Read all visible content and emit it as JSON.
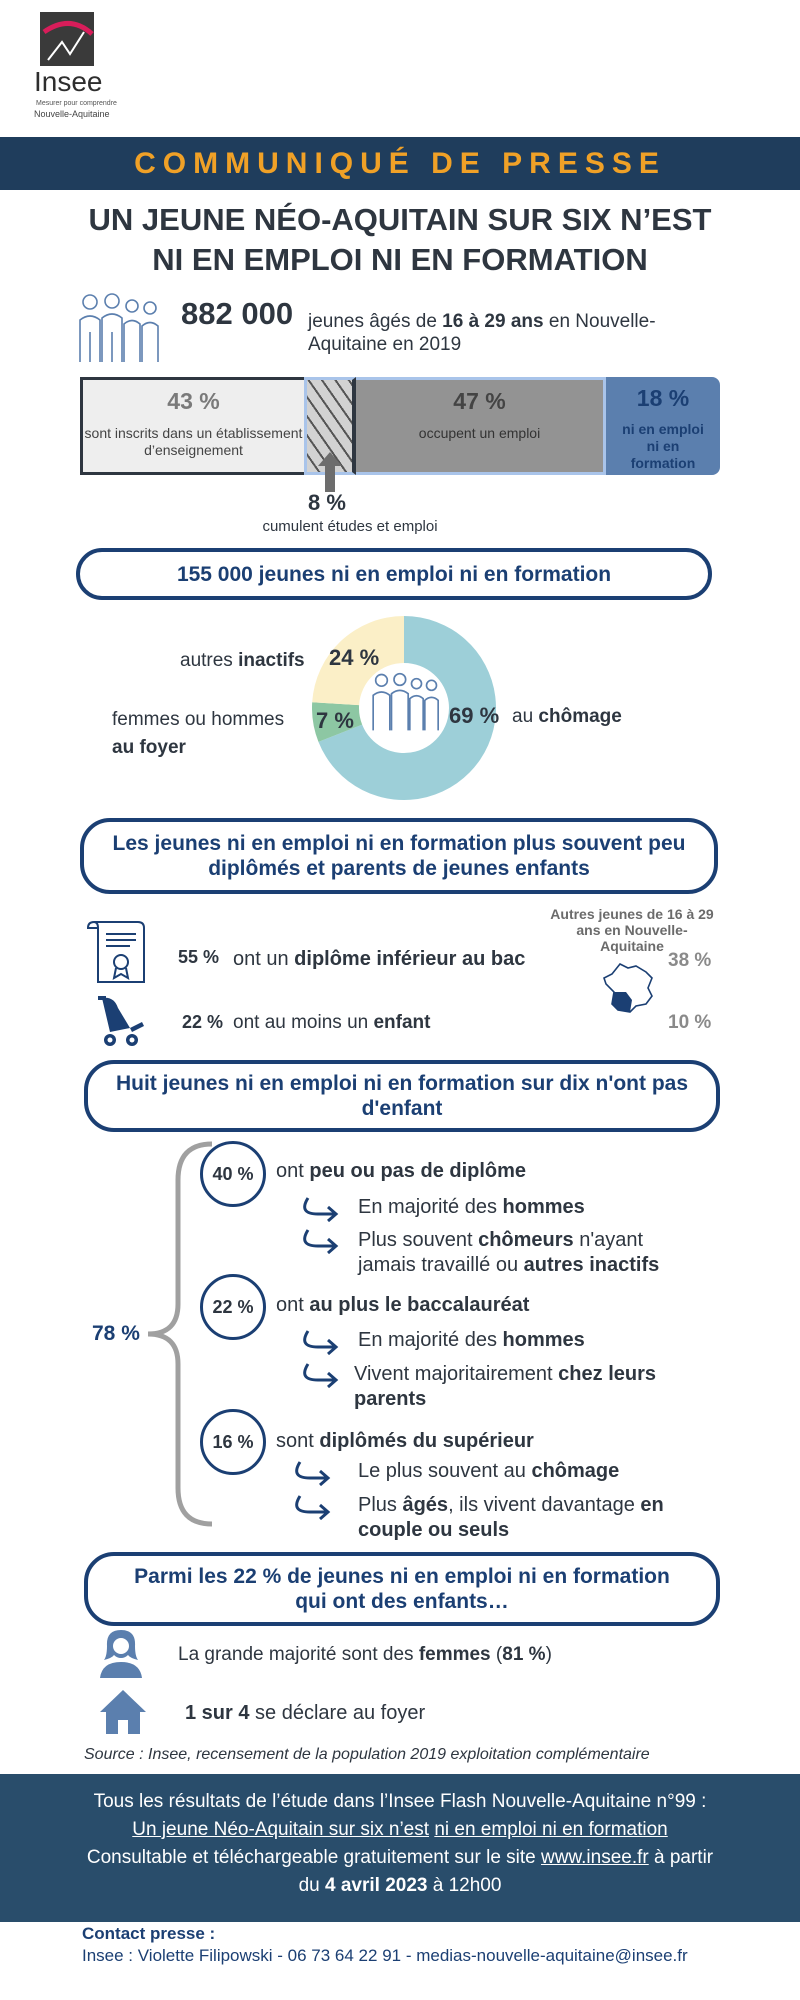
{
  "logo": {
    "name": "Insee",
    "tagline": "Mesurer pour comprendre",
    "region": "Nouvelle-Aquitaine"
  },
  "banner": "COMMUNIQUÉ DE PRESSE",
  "title": {
    "line1": "UN JEUNE NÉO-AQUITAIN SUR SIX N’EST",
    "line2": "NI EN EMPLOI NI EN FORMATION"
  },
  "intro": {
    "value": "882 000",
    "text_a": "jeunes âgés de ",
    "text_b": "16 à 29 ans",
    "text_c": " en Nouvelle-",
    "text_d": "Aquitaine en 2019"
  },
  "bar": {
    "enrolled": {
      "pct": "43 %",
      "label": "sont inscrits dans un établissement d’enseignement",
      "value": 43
    },
    "both": {
      "pct": "8 %",
      "label": "cumulent études et emploi",
      "value": 8
    },
    "employed": {
      "pct": "47 %",
      "label": "occupent un emploi",
      "value": 47
    },
    "neet": {
      "pct": "18 %",
      "label": "ni en emploi ni en formation",
      "value": 18
    }
  },
  "section1": "155 000 jeunes ni en emploi ni en formation",
  "donut": {
    "unemployed": {
      "pct": "69 %",
      "label_a": "au ",
      "label_b": "chômage",
      "value": 69
    },
    "other": {
      "pct": "24 %",
      "label_a": "autres ",
      "label_b": "inactifs",
      "value": 24
    },
    "home": {
      "pct": "7 %",
      "label_a": "femmes ou hommes",
      "label_b": "au foyer",
      "value": 7
    },
    "colors": {
      "unemployed": "#9dcfd8",
      "other": "#fbefc7",
      "home": "#8dc7a3"
    }
  },
  "section2": {
    "line1": "Les jeunes ni en emploi ni en formation plus souvent peu",
    "line2": "diplômés et parents de jeunes enfants"
  },
  "compare": {
    "header": "Autres jeunes de 16 à 29 ans en Nouvelle-Aquitaine",
    "row1": {
      "pct": "55 %",
      "text_a": "ont un ",
      "text_b": "diplôme inférieur au bac",
      "other": "38 %"
    },
    "row2": {
      "pct": "22 %",
      "text_a": "ont au moins un ",
      "text_b": "enfant",
      "other": "10 %"
    }
  },
  "section3": {
    "line1": "Huit jeunes ni en emploi ni en formation sur dix n'ont pas",
    "line2": "d'enfant"
  },
  "brace_pct": "78 %",
  "groups": [
    {
      "pct": "40 %",
      "title_a": "ont ",
      "title_b": "peu ou pas de diplôme",
      "b1_a": "En majorité des ",
      "b1_b": "hommes",
      "b2_a": "Plus souvent ",
      "b2_b": "chômeurs",
      "b2_c": " n'ayant",
      "b2_d": "jamais travaillé ou ",
      "b2_e": "autres inactifs"
    },
    {
      "pct": "22 %",
      "title_a": "ont ",
      "title_b": "au plus le baccalauréat",
      "b1_a": "En majorité des ",
      "b1_b": "hommes",
      "b2_a": "Vivent majoritairement ",
      "b2_b": "chez leurs",
      "b2_c": "parents"
    },
    {
      "pct": "16 %",
      "title_a": "sont ",
      "title_b": "diplômés du supérieur",
      "b1_a": "Le plus souvent au ",
      "b1_b": "chômage",
      "b2_a": "Plus ",
      "b2_b": "âgés",
      "b2_c": ", ils vivent davantage ",
      "b2_d": "en",
      "b2_e": "couple ou seuls"
    }
  ],
  "section4": {
    "line1": "Parmi les 22 % de  jeunes ni en emploi ni en formation",
    "line2": "qui ont des enfants…"
  },
  "parents": {
    "row1_a": "La grande majorité sont des ",
    "row1_b": "femmes",
    "row1_c": " (",
    "row1_d": "81 %",
    "row1_e": ")",
    "row2_a": "1 sur 4",
    "row2_b": "  se déclare au foyer"
  },
  "source": "Source : Insee, recensement de la population 2019 exploitation complémentaire",
  "footer": {
    "line1": "Tous les résultats de l’étude  dans l’Insee Flash Nouvelle-Aquitaine  n°99 :",
    "link1": "Un jeune Néo-Aquitain sur six n’est",
    "link2": "ni en emploi ni en formation",
    "line3a": "Consultable et  téléchargeable gratuitement sur le site ",
    "site": "www.insee.fr",
    "line3b": "  à partir",
    "line4a": "du ",
    "date": "4 avril 2023",
    "line4b": "  à  12h00"
  },
  "contact": {
    "title": "Contact presse :",
    "details": "Insee : Violette Filipowski - 06 73 64 22 91 -  medias-nouvelle-aquitaine@insee.fr"
  }
}
